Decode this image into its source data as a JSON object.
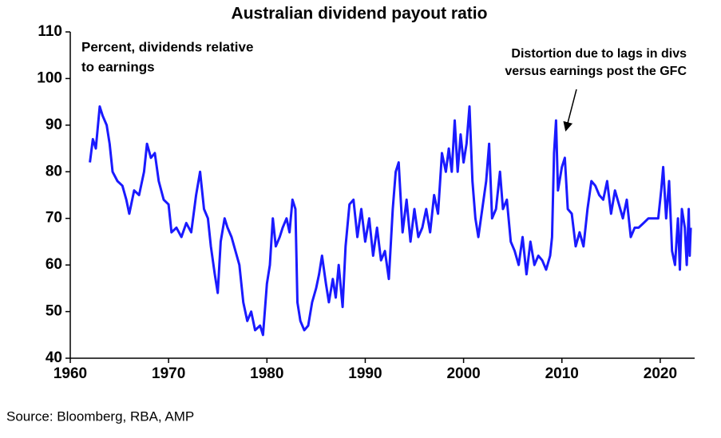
{
  "chart_data": {
    "type": "line",
    "title": "Australian dividend payout ratio",
    "subtitle": [
      "Percent, dividends relative",
      "to earnings"
    ],
    "annotation": [
      "Distortion due to lags in divs",
      "versus earnings post the GFC"
    ],
    "source": "Source: Bloomberg, RBA, AMP",
    "xlim": [
      1960,
      2023.5
    ],
    "xticks": [
      1960,
      1970,
      1980,
      1990,
      2000,
      2010,
      2020
    ],
    "ylim": [
      40,
      110
    ],
    "yticks": [
      40,
      50,
      60,
      70,
      80,
      90,
      100,
      110
    ],
    "grid": false,
    "series": [
      {
        "name": "Dividend payout ratio",
        "color": "#1a1aff",
        "x": [
          1962.0,
          1962.3,
          1962.6,
          1963.0,
          1963.3,
          1963.7,
          1964.0,
          1964.3,
          1964.8,
          1965.3,
          1965.7,
          1966.0,
          1966.5,
          1967.0,
          1967.5,
          1967.8,
          1968.2,
          1968.6,
          1969.0,
          1969.5,
          1970.0,
          1970.3,
          1970.8,
          1971.3,
          1971.8,
          1972.3,
          1972.8,
          1973.2,
          1973.6,
          1974.0,
          1974.3,
          1974.7,
          1975.0,
          1975.3,
          1975.7,
          1976.0,
          1976.4,
          1976.8,
          1977.2,
          1977.6,
          1978.0,
          1978.4,
          1978.8,
          1979.3,
          1979.6,
          1980.0,
          1980.3,
          1980.6,
          1980.9,
          1981.3,
          1981.6,
          1982.0,
          1982.3,
          1982.6,
          1982.9,
          1983.1,
          1983.4,
          1983.8,
          1984.2,
          1984.6,
          1985.0,
          1985.3,
          1985.6,
          1986.0,
          1986.3,
          1986.7,
          1987.0,
          1987.3,
          1987.7,
          1988.0,
          1988.4,
          1988.8,
          1989.2,
          1989.6,
          1990.0,
          1990.4,
          1990.8,
          1991.2,
          1991.6,
          1992.0,
          1992.4,
          1992.8,
          1993.1,
          1993.4,
          1993.8,
          1994.2,
          1994.6,
          1995.0,
          1995.4,
          1995.8,
          1996.2,
          1996.6,
          1997.0,
          1997.4,
          1997.8,
          1998.2,
          1998.5,
          1998.8,
          1999.1,
          1999.4,
          1999.7,
          2000.0,
          2000.3,
          2000.6,
          2000.9,
          2001.2,
          2001.5,
          2001.9,
          2002.3,
          2002.6,
          2002.9,
          2003.3,
          2003.7,
          2004.0,
          2004.4,
          2004.8,
          2005.2,
          2005.6,
          2006.0,
          2006.4,
          2006.8,
          2007.2,
          2007.6,
          2008.0,
          2008.4,
          2008.8,
          2009.0,
          2009.2,
          2009.4,
          2009.6,
          2010.0,
          2010.3,
          2010.6,
          2011.0,
          2011.4,
          2011.8,
          2012.2,
          2012.6,
          2013.0,
          2013.4,
          2013.8,
          2014.2,
          2014.6,
          2015.0,
          2015.4,
          2015.8,
          2016.2,
          2016.6,
          2017.0,
          2017.4,
          2017.8,
          2018.3,
          2018.8,
          2019.3,
          2019.8,
          2020.1,
          2020.3,
          2020.6,
          2020.9,
          2021.2,
          2021.5,
          2021.8,
          2022.0,
          2022.2,
          2022.5,
          2022.7,
          2022.9,
          2023.0,
          2023.1
        ],
        "values": [
          82,
          87,
          85,
          94,
          92,
          90,
          86,
          80,
          78,
          77,
          74,
          71,
          76,
          75,
          80,
          86,
          83,
          84,
          78,
          74,
          73,
          67,
          68,
          66,
          69,
          67,
          75,
          80,
          72,
          70,
          64,
          58,
          54,
          65,
          70,
          68,
          66,
          63,
          60,
          52,
          48,
          50,
          46,
          47,
          45,
          56,
          60,
          70,
          64,
          66,
          68,
          70,
          67,
          74,
          72,
          52,
          48,
          46,
          47,
          52,
          55,
          58,
          62,
          56,
          52,
          57,
          53,
          60,
          51,
          64,
          73,
          74,
          66,
          72,
          65,
          70,
          62,
          68,
          61,
          63,
          57,
          72,
          80,
          82,
          67,
          74,
          65,
          72,
          66,
          68,
          72,
          67,
          75,
          71,
          84,
          80,
          85,
          80,
          91,
          80,
          88,
          82,
          86,
          94,
          78,
          70,
          66,
          72,
          78,
          86,
          70,
          72,
          80,
          72,
          74,
          65,
          63,
          60,
          66,
          58,
          65,
          60,
          62,
          61,
          59,
          62,
          66,
          84,
          91,
          76,
          81,
          83,
          72,
          71,
          64,
          67,
          64,
          72,
          78,
          77,
          75,
          74,
          78,
          71,
          76,
          73,
          70,
          74,
          66,
          68,
          68,
          69,
          70,
          70,
          70,
          76,
          81,
          70,
          78,
          63,
          60,
          70,
          59,
          72,
          68,
          60,
          72,
          62,
          68
        ]
      }
    ]
  }
}
